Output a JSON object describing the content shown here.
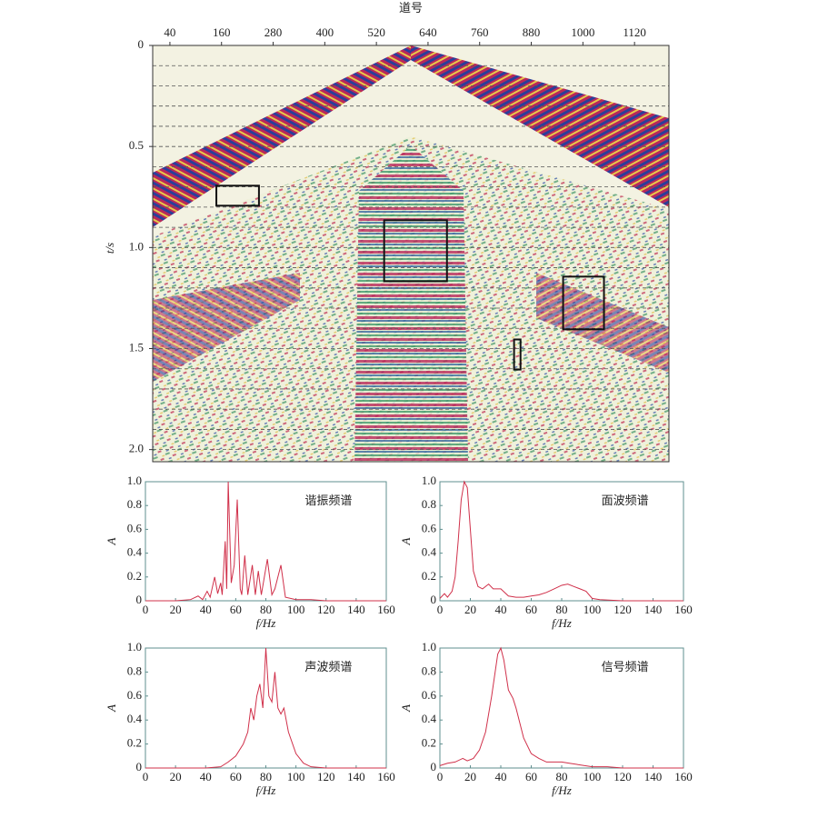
{
  "chart_data": [
    {
      "type": "seismic",
      "xlabel": "道号",
      "ylabel": "t/s",
      "xlim": [
        0,
        1200
      ],
      "ylim": [
        0,
        2.06
      ],
      "xticks": [
        40,
        160,
        280,
        400,
        520,
        640,
        760,
        880,
        1000,
        1120
      ],
      "yticks": [
        0,
        0.5,
        {
          "value": 1,
          "label": "1.0"
        },
        1.5,
        {
          "value": 2,
          "label": "2.0"
        }
      ],
      "yminorticks": [
        0.1,
        0.2,
        0.3,
        0.4,
        0.5,
        0.6,
        0.7,
        0.8,
        0.9,
        1.0,
        1.1,
        1.2,
        1.3,
        1.4,
        1.5,
        1.6,
        1.7,
        1.8,
        1.9,
        2.0
      ],
      "boxes": [
        [
          148,
          247,
          0.694,
          0.793
        ],
        [
          538,
          684,
          0.865,
          1.167
        ],
        [
          954,
          1049,
          1.144,
          1.405
        ],
        [
          840,
          855,
          1.455,
          1.604
        ]
      ]
    },
    {
      "type": "line",
      "annotation": "谐振频谱",
      "xlabel": "f/Hz",
      "ylabel": "A",
      "color": "#d0304a",
      "xlim": [
        0,
        160
      ],
      "ylim": [
        0,
        1
      ],
      "xticks": [
        0,
        20,
        40,
        60,
        80,
        100,
        120,
        140,
        160
      ],
      "yticks": [
        0,
        0.2,
        0.4,
        0.6,
        0.8,
        {
          "value": 1,
          "label": "1.0"
        }
      ],
      "x": [
        0,
        20,
        30,
        35,
        38,
        41,
        43,
        46,
        48,
        50,
        51,
        53,
        54,
        55,
        57,
        59,
        61,
        63,
        64,
        66,
        68,
        71,
        73,
        75,
        77,
        81,
        84,
        86,
        90,
        93,
        100,
        110,
        120,
        160
      ],
      "values": [
        0,
        0,
        0.01,
        0.04,
        0.01,
        0.08,
        0.03,
        0.2,
        0.06,
        0.15,
        0.05,
        0.5,
        0.1,
        1.0,
        0.15,
        0.3,
        0.85,
        0.1,
        0.05,
        0.38,
        0.05,
        0.3,
        0.05,
        0.25,
        0.05,
        0.35,
        0.05,
        0.1,
        0.3,
        0.03,
        0.01,
        0.01,
        0,
        0
      ]
    },
    {
      "type": "line",
      "annotation": "面波频谱",
      "xlabel": "f/Hz",
      "ylabel": "A",
      "color": "#d0304a",
      "xlim": [
        0,
        160
      ],
      "ylim": [
        0,
        1
      ],
      "xticks": [
        0,
        20,
        40,
        60,
        80,
        100,
        120,
        140,
        160
      ],
      "yticks": [
        0,
        0.2,
        0.4,
        0.6,
        0.8,
        {
          "value": 1,
          "label": "1.0"
        }
      ],
      "x": [
        0,
        3,
        5,
        8,
        10,
        12,
        14,
        16,
        18,
        20,
        22,
        25,
        28,
        32,
        35,
        40,
        45,
        50,
        55,
        60,
        65,
        70,
        75,
        80,
        84,
        88,
        92,
        96,
        100,
        105,
        120,
        160
      ],
      "values": [
        0.02,
        0.06,
        0.03,
        0.08,
        0.2,
        0.5,
        0.85,
        1.0,
        0.95,
        0.6,
        0.25,
        0.12,
        0.1,
        0.14,
        0.1,
        0.1,
        0.04,
        0.03,
        0.03,
        0.04,
        0.05,
        0.07,
        0.1,
        0.13,
        0.14,
        0.12,
        0.1,
        0.08,
        0.02,
        0.01,
        0,
        0
      ]
    },
    {
      "type": "line",
      "annotation": "声波频谱",
      "xlabel": "f/Hz",
      "ylabel": "A",
      "color": "#d0304a",
      "xlim": [
        0,
        160
      ],
      "ylim": [
        0,
        1
      ],
      "xticks": [
        0,
        20,
        40,
        60,
        80,
        100,
        120,
        140,
        160
      ],
      "yticks": [
        0,
        0.2,
        0.4,
        0.6,
        0.8,
        {
          "value": 1,
          "label": "1.0"
        }
      ],
      "x": [
        0,
        40,
        50,
        55,
        60,
        65,
        68,
        70,
        72,
        74,
        76,
        78,
        80,
        82,
        84,
        86,
        88,
        90,
        92,
        95,
        100,
        105,
        110,
        120,
        160
      ],
      "values": [
        0,
        0,
        0.01,
        0.05,
        0.1,
        0.2,
        0.3,
        0.5,
        0.4,
        0.6,
        0.7,
        0.5,
        1.0,
        0.6,
        0.55,
        0.8,
        0.5,
        0.45,
        0.5,
        0.3,
        0.12,
        0.04,
        0.01,
        0,
        0
      ]
    },
    {
      "type": "line",
      "annotation": "信号频谱",
      "xlabel": "f/Hz",
      "ylabel": "A",
      "color": "#d0304a",
      "xlim": [
        0,
        160
      ],
      "ylim": [
        0,
        1
      ],
      "xticks": [
        0,
        20,
        40,
        60,
        80,
        100,
        120,
        140,
        160
      ],
      "yticks": [
        0,
        0.2,
        0.4,
        0.6,
        0.8,
        {
          "value": 1,
          "label": "1.0"
        }
      ],
      "x": [
        0,
        5,
        10,
        15,
        18,
        22,
        26,
        30,
        34,
        38,
        40,
        42,
        45,
        48,
        50,
        55,
        60,
        65,
        70,
        80,
        85,
        90,
        100,
        110,
        120,
        160
      ],
      "values": [
        0.02,
        0.04,
        0.05,
        0.08,
        0.06,
        0.08,
        0.15,
        0.3,
        0.6,
        0.95,
        1.0,
        0.9,
        0.65,
        0.58,
        0.5,
        0.25,
        0.12,
        0.08,
        0.05,
        0.05,
        0.04,
        0.03,
        0.01,
        0.01,
        0,
        0
      ]
    }
  ]
}
